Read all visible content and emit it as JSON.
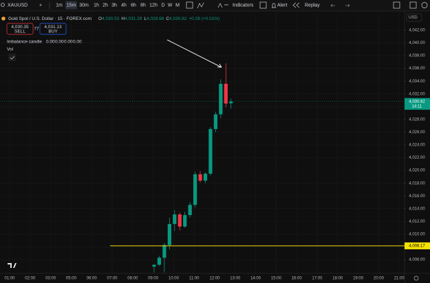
{
  "toolbar": {
    "symbol": "XAUUSD",
    "intervals": [
      "1m",
      "15m",
      "30m",
      "1h",
      "2h",
      "3h",
      "4h",
      "6h",
      "8h",
      "12h",
      "D",
      "W",
      "M"
    ],
    "indicators": "Indicators",
    "alert": "Alert",
    "replay": "Replay"
  },
  "legend": {
    "title": "Gold Spot / U.S. Dollar · 15 · FOREX.com",
    "ohlc": [
      {
        "key": "O",
        "value": "4,030.53"
      },
      {
        "key": "H",
        "value": "4,031.29"
      },
      {
        "key": "L",
        "value": "4,029.68"
      },
      {
        "key": "C",
        "value": "4,030.82"
      }
    ],
    "change": "+0.28 (+0.01%)"
  },
  "trade": {
    "sell_price": "4,030.35",
    "sell": "SELL",
    "spread": "77",
    "buy_price": "4,031.13",
    "buy": "BUY"
  },
  "indicators": [
    {
      "name": "Imbalance candle",
      "values": [
        "0.00",
        "0.00",
        "0.00",
        "0.00"
      ]
    },
    {
      "name": "Vol"
    }
  ],
  "currency": "USD",
  "chart_data": {
    "type": "candlestick",
    "open": [
      4004.9,
      4005.2,
      4006.3,
      4008.3,
      4011.6,
      4013.1,
      4011.2,
      4013.0,
      4014.6,
      4019.4,
      4018.4,
      4019.5,
      4026.5,
      4028.8,
      4033.6,
      4030.53
    ],
    "high": [
      4005.3,
      4006.6,
      4008.6,
      4012.6,
      4013.8,
      4013.4,
      4013.5,
      4015.0,
      4019.8,
      4019.9,
      4019.7,
      4026.8,
      4029.2,
      4034.3,
      4036.8,
      4031.29
    ],
    "low": [
      4004.0,
      4005.0,
      4004.0,
      4007.6,
      4010.5,
      4010.6,
      4011.0,
      4012.6,
      4014.2,
      4018.1,
      4018.0,
      4019.2,
      4026.0,
      4028.2,
      4029.9,
      4029.68
    ],
    "close": [
      4005.2,
      4006.3,
      4008.3,
      4011.6,
      4013.1,
      4011.2,
      4013.0,
      4014.6,
      4019.4,
      4018.4,
      4019.5,
      4026.5,
      4028.8,
      4033.6,
      4030.5,
      4030.82
    ],
    "up_color": "#089981",
    "down_color": "#f23645",
    "ylim": [
      4003.85,
      4044.8
    ],
    "yticks": [
      {
        "value": 4006,
        "label": "4,006.00"
      },
      {
        "value": 4008,
        "label": "4,008.00"
      },
      {
        "value": 4010,
        "label": "4,010.00"
      },
      {
        "value": 4012,
        "label": "4,012.00"
      },
      {
        "value": 4014,
        "label": "4,014.00"
      },
      {
        "value": 4016,
        "label": "4,016.00"
      },
      {
        "value": 4018,
        "label": "4,018.00"
      },
      {
        "value": 4020,
        "label": "4,020.00"
      },
      {
        "value": 4022,
        "label": "4,022.00"
      },
      {
        "value": 4024,
        "label": "4,024.00"
      },
      {
        "value": 4026,
        "label": "4,026.00"
      },
      {
        "value": 4028,
        "label": "4,028.00"
      },
      {
        "value": 4030,
        "label": "4,030.00"
      },
      {
        "value": 4032,
        "label": "4,032.00"
      },
      {
        "value": 4034,
        "label": "4,034.00"
      },
      {
        "value": 4036,
        "label": "4,036.00"
      },
      {
        "value": 4038,
        "label": "4,038.00"
      },
      {
        "value": 4040,
        "label": "4,040.00"
      },
      {
        "value": 4042,
        "label": "4,042.00"
      }
    ],
    "x_labels": [
      "01:00",
      "02:00",
      "03:00",
      "05:00",
      "06:00",
      "07:00",
      "08:00",
      "09:00",
      "10:00",
      "11:00",
      "12:00",
      "13:00",
      "14:00",
      "15:00",
      "16:00",
      "17:00",
      "18:00",
      "19:00",
      "20:00",
      "21:00"
    ],
    "grid": true,
    "price_line": {
      "value": 4008.17,
      "label": "4,008.17",
      "color": "#f5e100"
    },
    "last_price": {
      "value": 4030.82,
      "label": "4,030.82",
      "countdown": "14:11"
    }
  }
}
